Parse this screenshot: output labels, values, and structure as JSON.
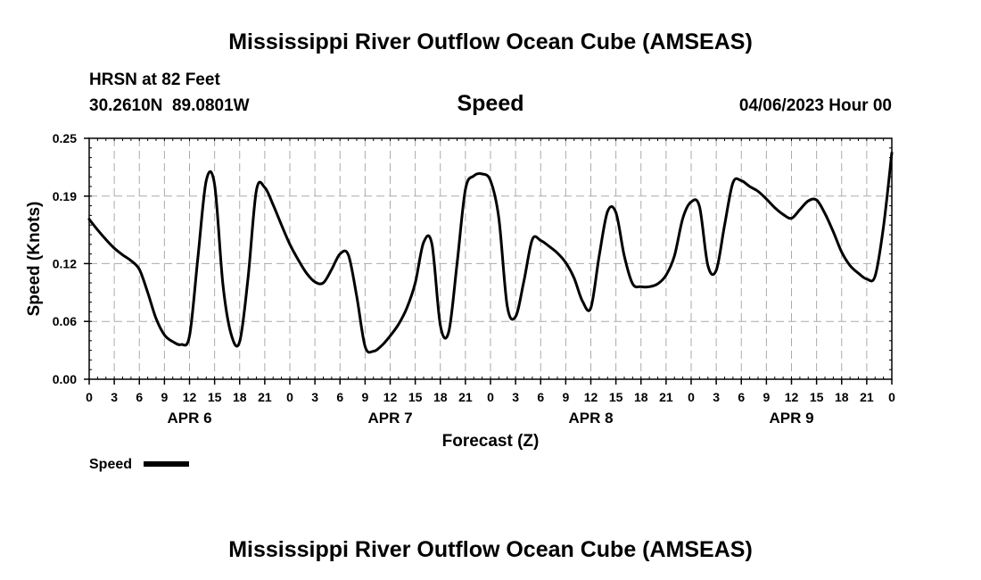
{
  "header": {
    "title": "Mississippi River Outflow Ocean Cube (AMSEAS)",
    "station": "HRSN at 82 Feet",
    "coordinates": "30.2610N  89.0801W",
    "parameter": "Speed",
    "datetime": "04/06/2023 Hour 00"
  },
  "legend": {
    "label": "Speed",
    "color": "#000000"
  },
  "footer": {
    "title": "Mississippi River Outflow Ocean Cube (AMSEAS)"
  },
  "chart_data": {
    "type": "line",
    "xlabel": "Forecast (Z)",
    "ylabel": "Speed (Knots)",
    "xlim": [
      0,
      96
    ],
    "ylim": [
      0,
      0.25
    ],
    "grid": true,
    "legend_position": "bottom-left",
    "y_ticks": [
      0,
      0.06,
      0.12,
      0.19,
      0.25
    ],
    "y_tick_labels": [
      "0.00",
      "0.06",
      "0.12",
      "0.19",
      "0.25"
    ],
    "x_tick_hours": [
      0,
      3,
      6,
      9,
      12,
      15,
      18,
      21,
      24,
      27,
      30,
      33,
      36,
      39,
      42,
      45,
      48,
      51,
      54,
      57,
      60,
      63,
      66,
      69,
      72,
      75,
      78,
      81,
      84,
      87,
      90,
      93,
      96
    ],
    "x_tick_labels": [
      "0",
      "3",
      "6",
      "9",
      "12",
      "15",
      "18",
      "21",
      "0",
      "3",
      "6",
      "9",
      "12",
      "15",
      "18",
      "21",
      "0",
      "3",
      "6",
      "9",
      "12",
      "15",
      "18",
      "21",
      "0",
      "3",
      "6",
      "9",
      "12",
      "15",
      "18",
      "21",
      "0"
    ],
    "day_labels": [
      {
        "label": "APR 6",
        "hour": 12
      },
      {
        "label": "APR 7",
        "hour": 36
      },
      {
        "label": "APR 8",
        "hour": 60
      },
      {
        "label": "APR 9",
        "hour": 84
      }
    ],
    "series": [
      {
        "name": "Speed",
        "color": "#000000",
        "x": [
          0,
          1,
          2,
          3,
          4,
          5,
          6,
          7,
          8,
          9,
          10,
          11,
          12,
          13,
          14,
          15,
          16,
          17,
          18,
          19,
          20,
          21,
          22,
          23,
          24,
          25,
          26,
          27,
          28,
          29,
          30,
          31,
          32,
          33,
          34,
          35,
          36,
          37,
          38,
          39,
          40,
          41,
          42,
          43,
          44,
          45,
          46,
          47,
          48,
          49,
          50,
          51,
          52,
          53,
          54,
          55,
          56,
          57,
          58,
          59,
          60,
          61,
          62,
          63,
          64,
          65,
          66,
          67,
          68,
          69,
          70,
          71,
          72,
          73,
          74,
          75,
          76,
          77,
          78,
          79,
          80,
          81,
          82,
          83,
          84,
          85,
          86,
          87,
          88,
          89,
          90,
          91,
          92,
          93,
          94,
          95,
          96
        ],
        "y": [
          0.166,
          0.155,
          0.145,
          0.136,
          0.129,
          0.123,
          0.114,
          0.09,
          0.063,
          0.046,
          0.039,
          0.036,
          0.045,
          0.126,
          0.206,
          0.202,
          0.098,
          0.046,
          0.039,
          0.105,
          0.196,
          0.199,
          0.181,
          0.16,
          0.14,
          0.124,
          0.11,
          0.101,
          0.1,
          0.114,
          0.13,
          0.129,
          0.086,
          0.034,
          0.029,
          0.035,
          0.045,
          0.057,
          0.074,
          0.1,
          0.142,
          0.14,
          0.056,
          0.049,
          0.12,
          0.197,
          0.211,
          0.213,
          0.206,
          0.167,
          0.076,
          0.065,
          0.102,
          0.145,
          0.144,
          0.138,
          0.131,
          0.121,
          0.105,
          0.081,
          0.074,
          0.128,
          0.174,
          0.173,
          0.128,
          0.099,
          0.096,
          0.096,
          0.099,
          0.108,
          0.128,
          0.167,
          0.184,
          0.179,
          0.118,
          0.113,
          0.16,
          0.204,
          0.206,
          0.2,
          0.195,
          0.187,
          0.178,
          0.171,
          0.167,
          0.176,
          0.185,
          0.186,
          0.172,
          0.153,
          0.132,
          0.118,
          0.11,
          0.104,
          0.107,
          0.158,
          0.235
        ]
      }
    ]
  }
}
